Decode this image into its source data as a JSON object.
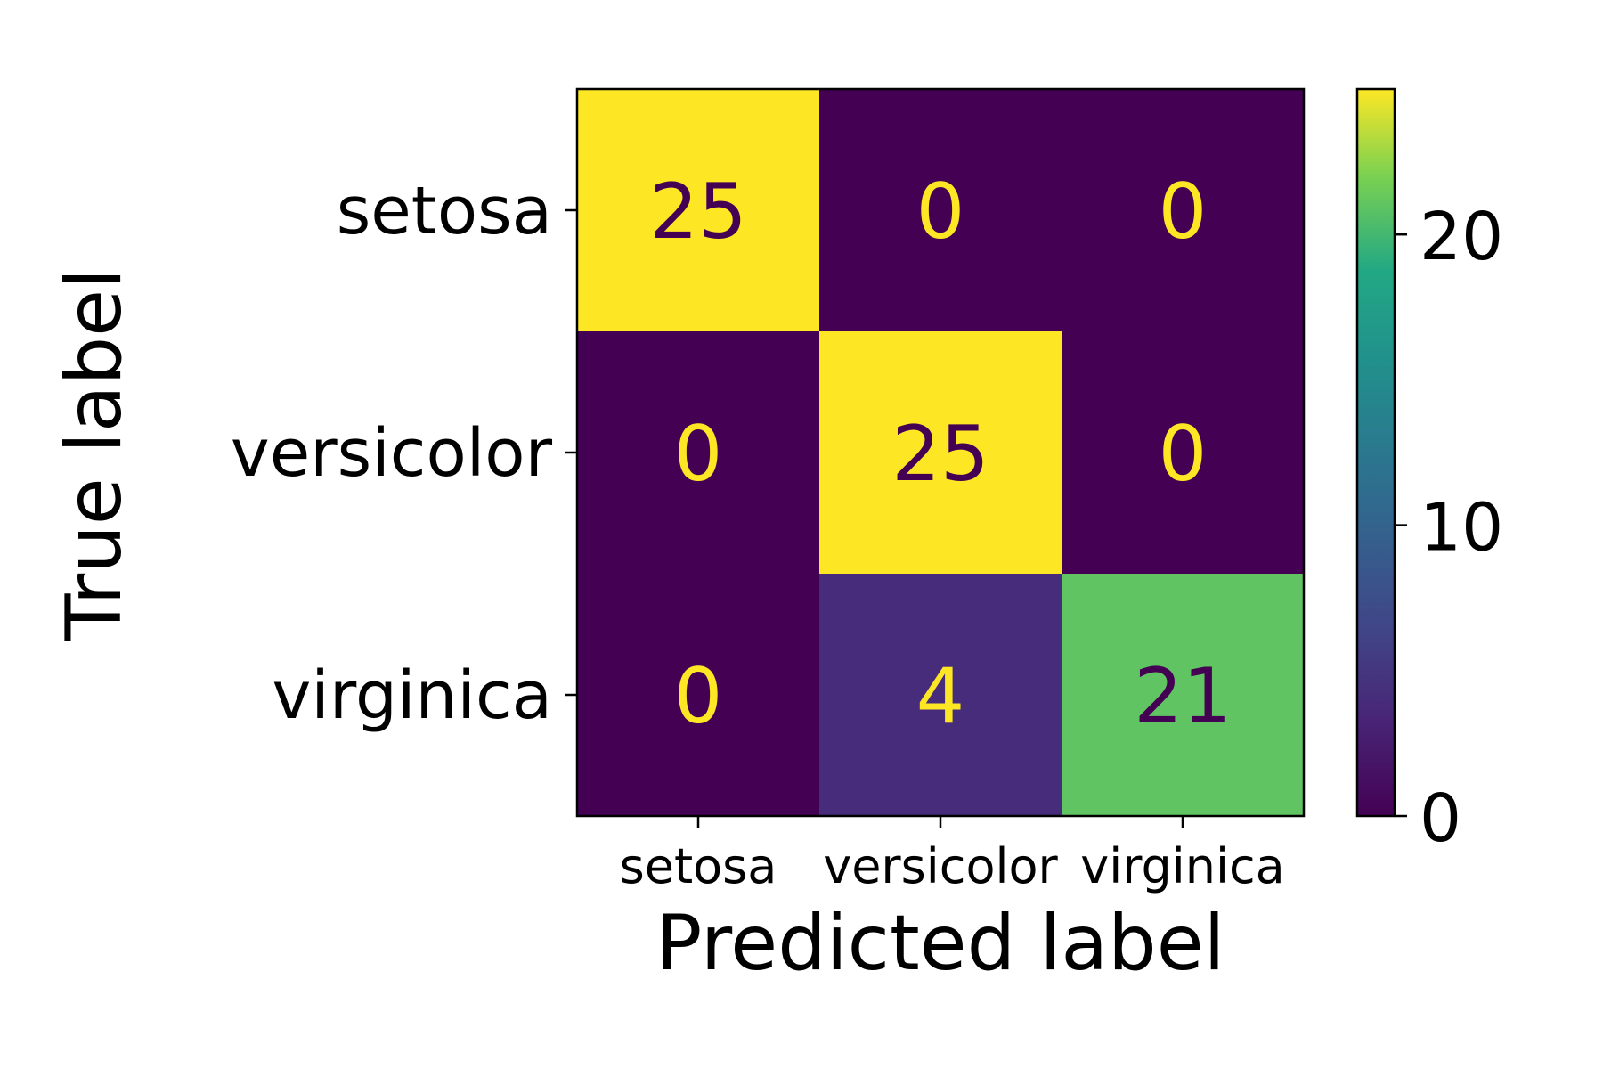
{
  "chart_data": {
    "type": "heatmap",
    "title": "",
    "xlabel": "Predicted label",
    "ylabel": "True label",
    "x_categories": [
      "setosa",
      "versicolor",
      "virginica"
    ],
    "y_categories": [
      "setosa",
      "versicolor",
      "virginica"
    ],
    "matrix": [
      [
        25,
        0,
        0
      ],
      [
        0,
        25,
        0
      ],
      [
        0,
        4,
        21
      ]
    ],
    "colormap": "viridis",
    "colorbar": {
      "vmin": 0,
      "vmax": 25,
      "ticks": [
        0,
        10,
        20
      ]
    },
    "text_colors": {
      "on_dark": "#fde725",
      "on_light": "#440154"
    }
  }
}
